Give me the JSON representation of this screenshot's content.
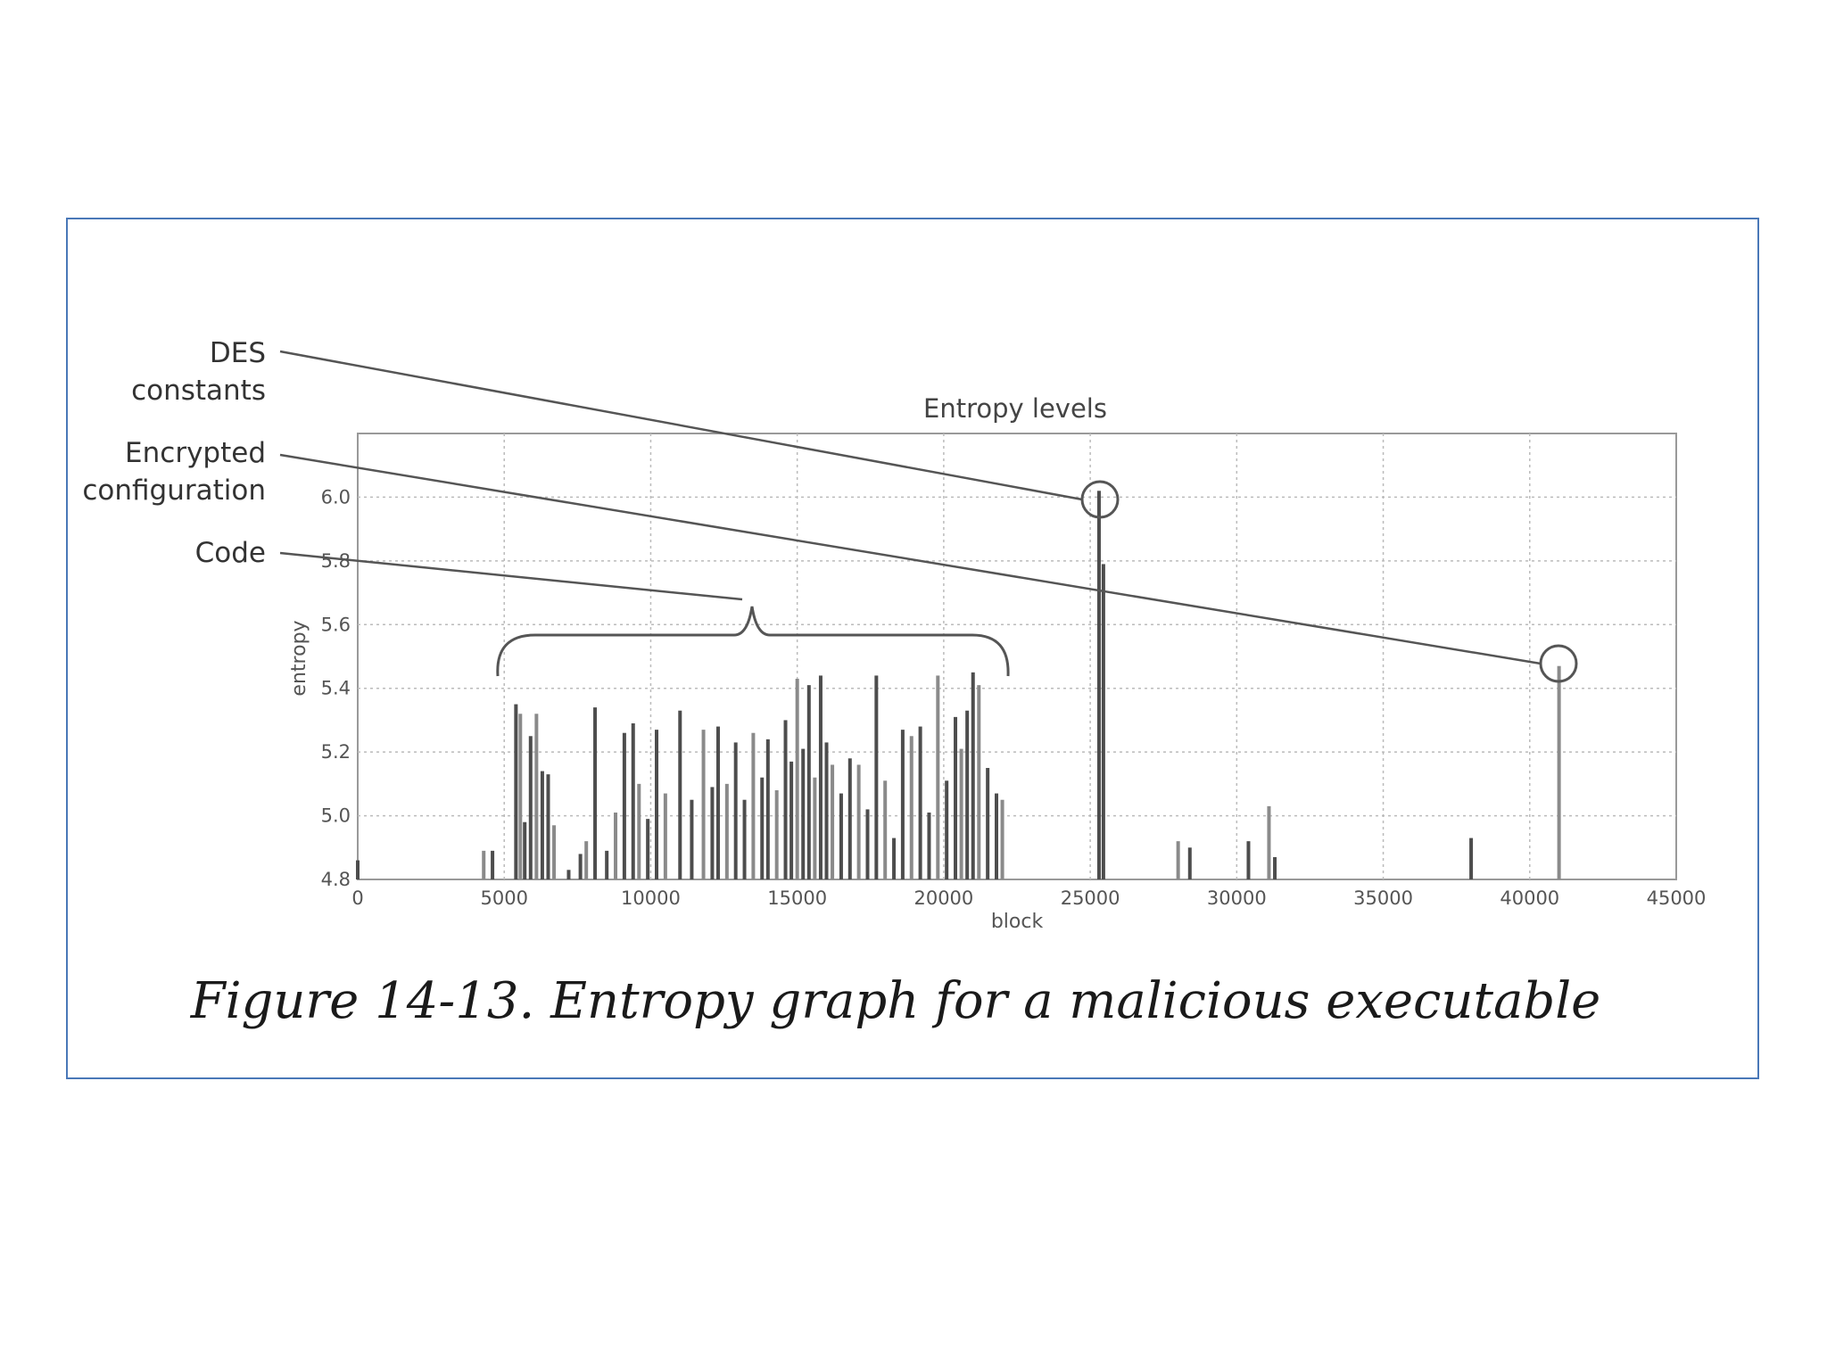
{
  "caption": "Figure 14-13. Entropy graph for a malicious executable",
  "annotations": {
    "des_line1": "DES",
    "des_line2": "constants",
    "enc_line1": "Encrypted",
    "enc_line2": "configuration",
    "code": "Code"
  },
  "chart_data": {
    "type": "bar",
    "title": "Entropy levels",
    "xlabel": "block",
    "ylabel": "entropy",
    "xlim": [
      0,
      45000
    ],
    "ylim": [
      4.8,
      6.2
    ],
    "grid": true,
    "x_ticks": [
      "0",
      "5000",
      "10000",
      "15000",
      "20000",
      "25000",
      "30000",
      "35000",
      "40000",
      "45000"
    ],
    "y_ticks": [
      "4.8",
      "5.0",
      "5.2",
      "5.4",
      "5.6",
      "5.8",
      "6.0"
    ],
    "series": [
      {
        "x": [
          0,
          4300,
          4600,
          5400,
          5550,
          5700,
          5900,
          6100,
          6300,
          6500,
          6700,
          7200,
          7600,
          7800,
          8100,
          8500,
          8800,
          9100,
          9400,
          9600,
          9900,
          10200,
          10500,
          11000,
          11400,
          11800,
          12100,
          12300,
          12600,
          12900,
          13200,
          13500,
          13800,
          14000,
          14300,
          14600,
          14800,
          15000,
          15200,
          15400,
          15600,
          15800,
          16000,
          16200,
          16500,
          16800,
          17100,
          17400,
          17700,
          18000,
          18300,
          18600,
          18900,
          19200,
          19500,
          19800,
          20100,
          20400,
          20600,
          20800,
          21000,
          21200,
          21500,
          21800,
          22000,
          25300,
          25450,
          28000,
          28400,
          30400,
          31100,
          31300,
          38000,
          41000
        ],
        "values": [
          4.86,
          4.89,
          4.89,
          5.35,
          5.32,
          4.98,
          5.25,
          5.32,
          5.14,
          5.13,
          4.97,
          4.83,
          4.88,
          4.92,
          5.34,
          4.89,
          5.01,
          5.26,
          5.29,
          5.1,
          4.99,
          5.27,
          5.07,
          5.33,
          5.05,
          5.27,
          5.09,
          5.28,
          5.1,
          5.23,
          5.05,
          5.26,
          5.12,
          5.24,
          5.08,
          5.3,
          5.17,
          5.43,
          5.21,
          5.41,
          5.12,
          5.44,
          5.23,
          5.16,
          5.07,
          5.18,
          5.16,
          5.02,
          5.44,
          5.11,
          4.93,
          5.27,
          5.25,
          5.28,
          5.01,
          5.44,
          5.11,
          5.31,
          5.21,
          5.33,
          5.45,
          5.41,
          5.15,
          5.07,
          5.05,
          6.02,
          5.79,
          4.92,
          4.9,
          4.92,
          5.03,
          4.87,
          4.93,
          5.47
        ]
      }
    ]
  }
}
